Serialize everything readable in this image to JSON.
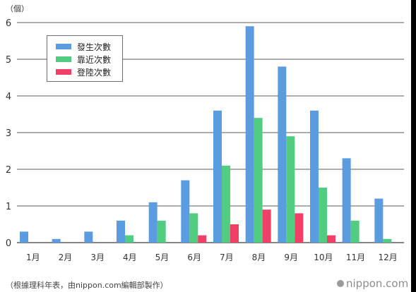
{
  "unit_label": "（個）",
  "source_note": "（根據理科年表，由nippon.com編輯部製作）",
  "brand": "nippon.com",
  "colors": {
    "series1": "#5b9bdf",
    "series2": "#52cc80",
    "series3": "#f04067",
    "grid": "#5a5a5a",
    "axis_text": "#333333"
  },
  "chart_data": {
    "type": "bar",
    "categories": [
      "1月",
      "2月",
      "3月",
      "4月",
      "5月",
      "6月",
      "7月",
      "8月",
      "9月",
      "10月",
      "11月",
      "12月"
    ],
    "series": [
      {
        "name": "發生次數",
        "values": [
          0.3,
          0.1,
          0.3,
          0.6,
          1.1,
          1.7,
          3.6,
          5.9,
          4.8,
          3.6,
          2.3,
          1.2
        ]
      },
      {
        "name": "靠近次數",
        "values": [
          0,
          0,
          0,
          0.2,
          0.6,
          0.8,
          2.1,
          3.4,
          2.9,
          1.5,
          0.6,
          0.1
        ]
      },
      {
        "name": "登陸次數",
        "values": [
          0,
          0,
          0,
          0,
          0,
          0.2,
          0.5,
          0.9,
          0.8,
          0.2,
          0,
          0
        ]
      }
    ],
    "yticks": [
      "0",
      "1",
      "2",
      "3",
      "4",
      "5",
      "6"
    ],
    "ylim": [
      0,
      6
    ],
    "grid": true,
    "legend_position": "top-left"
  }
}
